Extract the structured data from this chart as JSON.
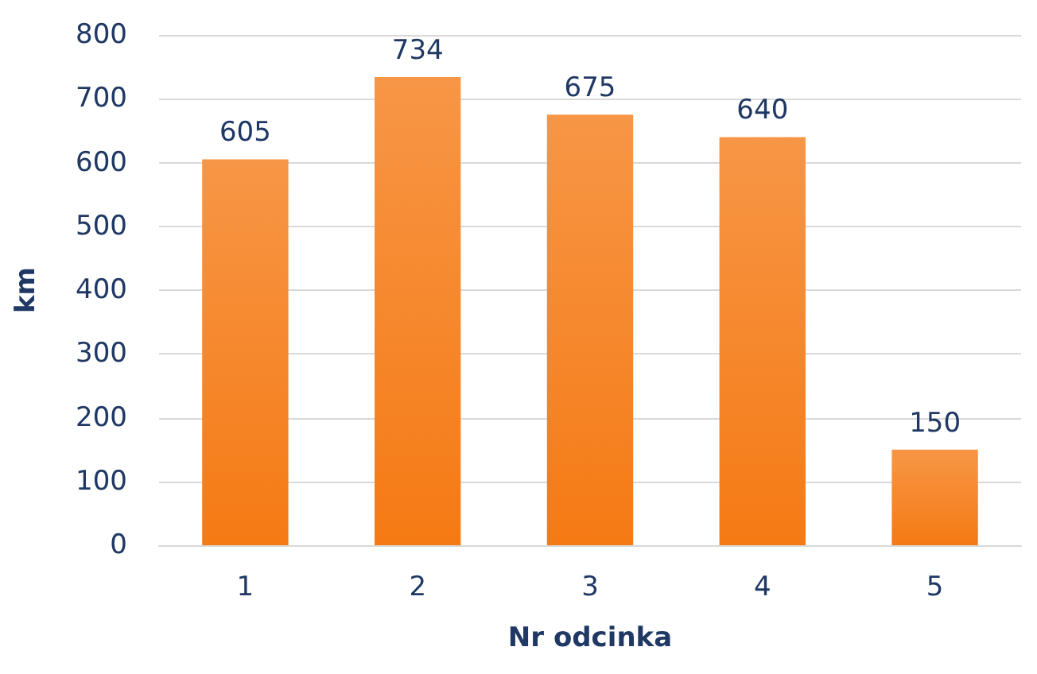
{
  "chart_data": {
    "type": "bar",
    "xlabel": "Nr odcinka",
    "ylabel": "km",
    "categories": [
      "1",
      "2",
      "3",
      "4",
      "5"
    ],
    "values": [
      605,
      734,
      675,
      640,
      150
    ],
    "color": "#f79646",
    "ylim": [
      0,
      800
    ],
    "yticks": [
      0,
      100,
      200,
      300,
      400,
      500,
      600,
      700,
      800
    ],
    "grid": "y",
    "data_labels": true
  }
}
